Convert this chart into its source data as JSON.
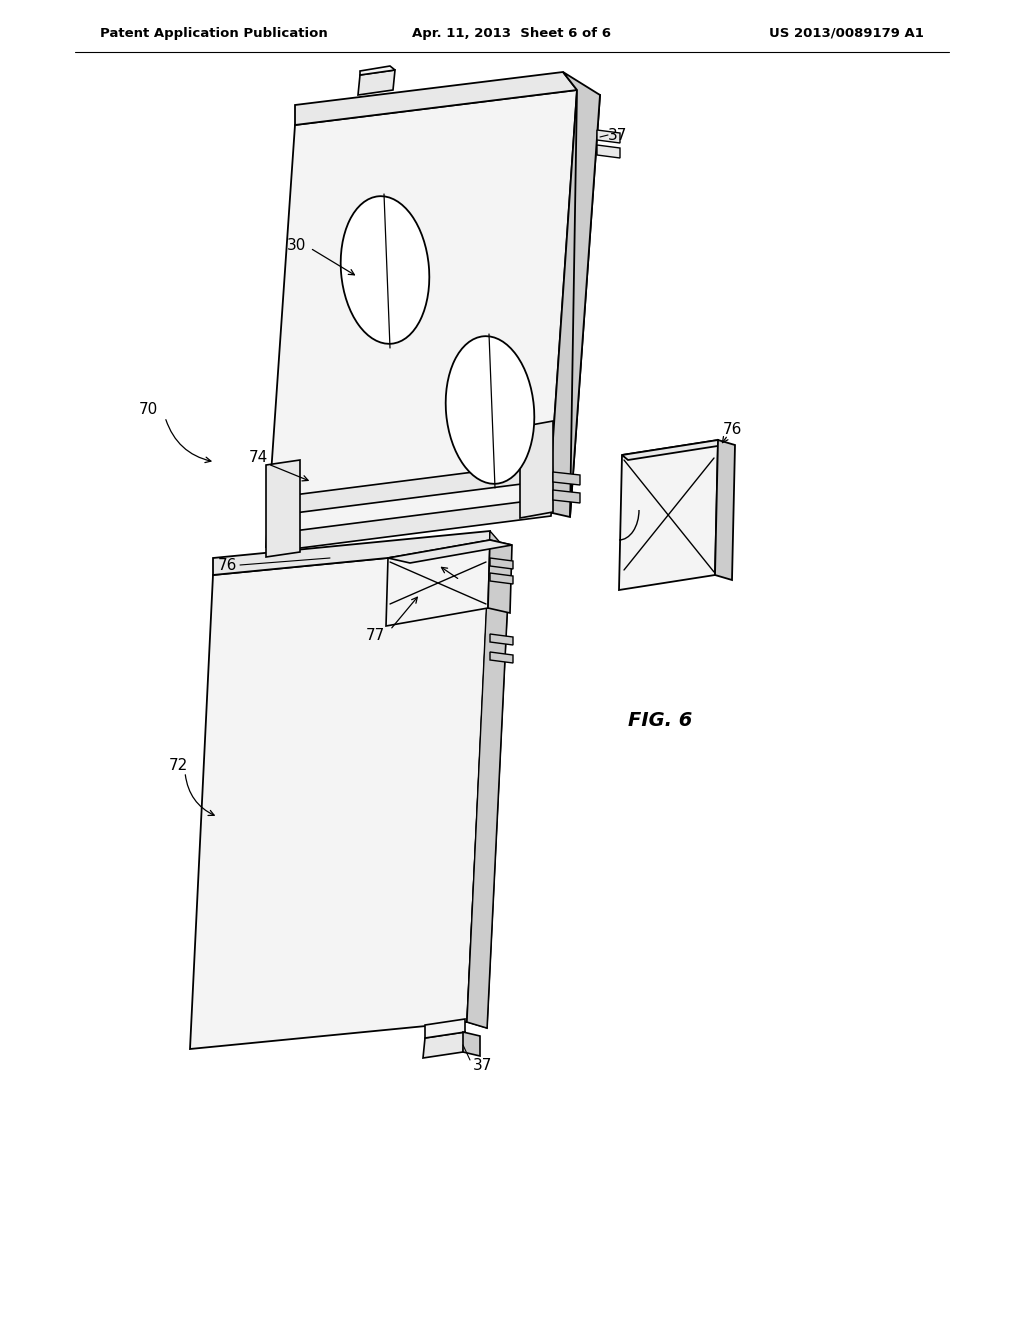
{
  "bg": "#ffffff",
  "lc": "#000000",
  "gf": "#f4f4f4",
  "gs": "#cccccc",
  "gt": "#e8e8e8",
  "header_left": "Patent Application Publication",
  "header_center": "Apr. 11, 2013  Sheet 6 of 6",
  "header_right": "US 2013/0089179 A1",
  "fig_label": "FIG. 6"
}
